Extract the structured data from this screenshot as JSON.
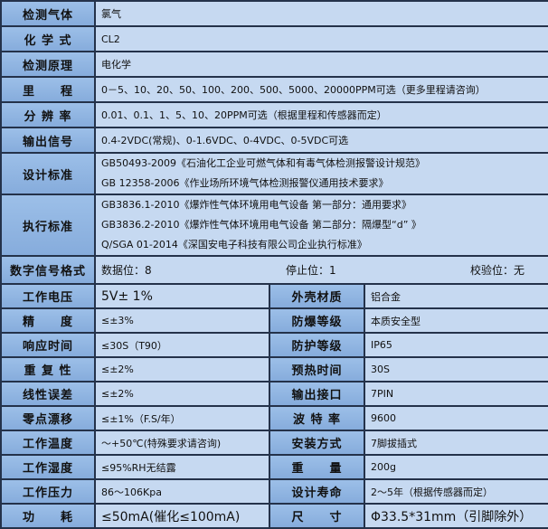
{
  "colors": {
    "label_bg": "#8db4e2",
    "value_bg": "#c6d9f1",
    "border": "#24324a"
  },
  "full_rows": [
    {
      "label": "检测气体",
      "value": "氯气"
    },
    {
      "label": "化 学 式",
      "value": "CL2"
    },
    {
      "label": "检测原理",
      "value": "电化学"
    },
    {
      "label": "里　　程",
      "value": "0－5、10、20、50、100、200、500、5000、20000PPM可选（更多里程请咨询）"
    },
    {
      "label": "分 辨 率",
      "value": "0.01、0.1、1、5、10、20PPM可选（根据里程和传感器而定）"
    },
    {
      "label": "输出信号",
      "value": "0.4-2VDC(常规)、0-1.6VDC、0-4VDC、0-5VDC可选"
    }
  ],
  "design_standard": {
    "label": "设计标准",
    "lines": [
      "GB50493-2009《石油化工企业可燃气体和有毒气体检测报警设计规范》",
      "GB 12358-2006《作业场所环境气体检测报警仪通用技术要求》"
    ]
  },
  "exec_standard": {
    "label": "执行标准",
    "lines": [
      "GB3836.1-2010《爆炸性气体环境用电气设备 第一部分：通用要求》",
      "GB3836.2-2010《爆炸性气体环境用电气设备 第二部分：隔爆型“d” 》",
      "Q/SGA 01-2014《深国安电子科技有限公司企业执行标准》"
    ]
  },
  "digital_format": {
    "label": "数字信号格式",
    "data_bits": "数据位：8",
    "stop_bits": "停止位：1",
    "parity": "校验位：无"
  },
  "pair_rows": [
    {
      "l1": "工作电压",
      "v1": "5V± 1%",
      "l2": "外壳材质",
      "v2": "铝合金"
    },
    {
      "l1": "精　　度",
      "v1": "≤±3%",
      "l2": "防爆等级",
      "v2": "本质安全型"
    },
    {
      "l1": "响应时间",
      "v1": "≤30S（T90）",
      "l2": "防护等级",
      "v2": "IP65"
    },
    {
      "l1": "重 复 性",
      "v1": "≤±2%",
      "l2": "预热时间",
      "v2": "30S"
    },
    {
      "l1": "线性误差",
      "v1": "≤±2%",
      "l2": "输出接口",
      "v2": "7PIN"
    },
    {
      "l1": "零点漂移",
      "v1": "≤±1%（F.S/年）",
      "l2": "波 特 率",
      "v2": "9600"
    },
    {
      "l1": "工作温度",
      "v1": "～+50℃(特殊要求请咨询)",
      "l2": "安装方式",
      "v2": "7脚拔插式"
    },
    {
      "l1": "工作湿度",
      "v1": "≤95%RH无结露",
      "l2": "重　　量",
      "v2": "200g"
    },
    {
      "l1": "工作压力",
      "v1": "86～106Kpa",
      "l2": "设计寿命",
      "v2": "2～5年（根据传感器而定）"
    },
    {
      "l1": "功　　耗",
      "v1": "≤50mA(催化≤100mA)",
      "l2": "尺　　寸",
      "v2": "Φ33.5*31mm（引脚除外）"
    }
  ]
}
